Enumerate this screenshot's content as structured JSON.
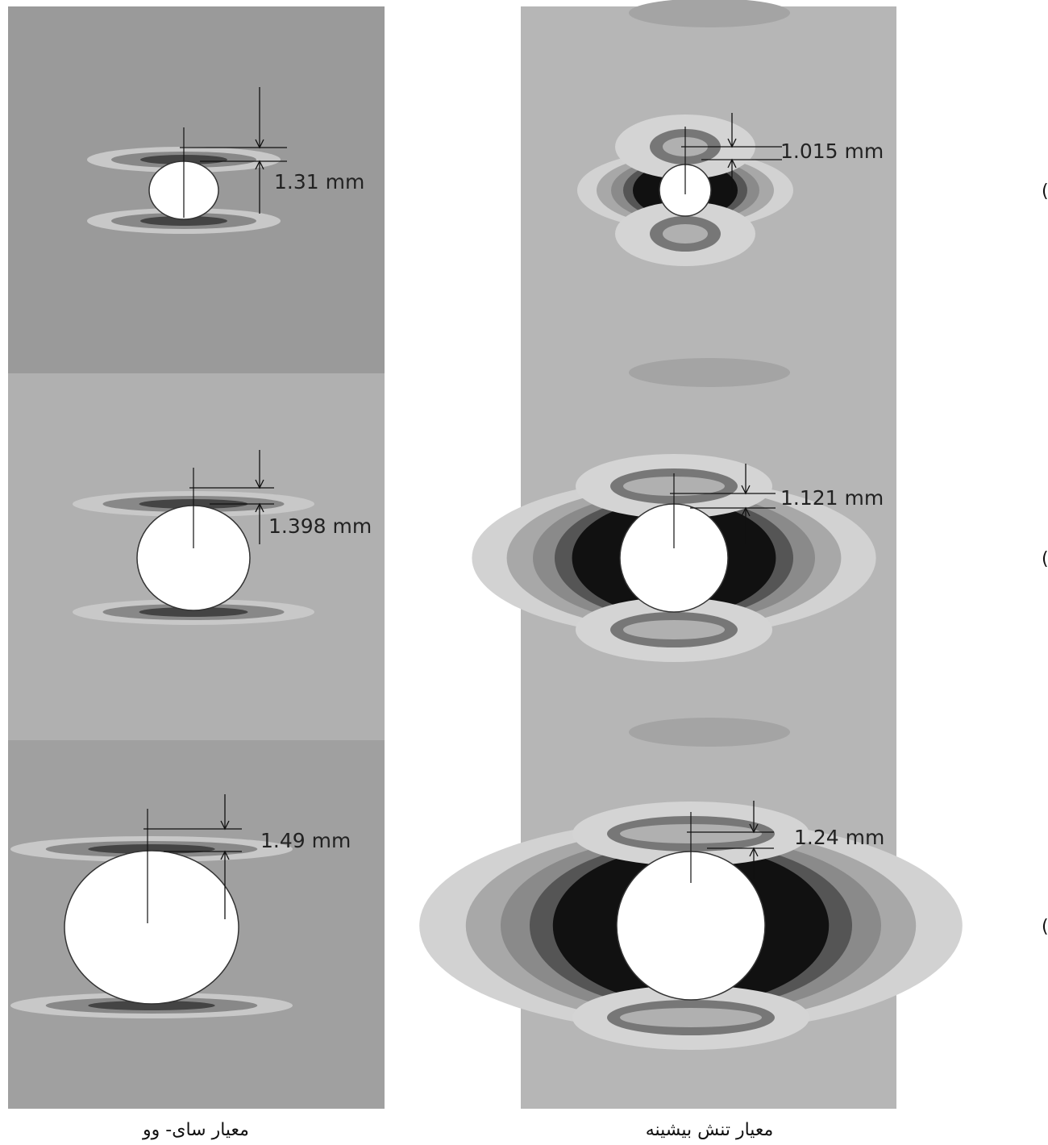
{
  "columns": [
    {
      "caption": "معیار سای- وو",
      "panels": [
        {
          "dimension": "1.31 mm"
        },
        {
          "dimension": "1.398 mm"
        },
        {
          "dimension": "1.49 mm"
        }
      ]
    },
    {
      "caption": "معیار تنش بیشینه",
      "panels": [
        {
          "dimension": "1.015 mm"
        },
        {
          "dimension": "1.121 mm"
        },
        {
          "dimension": "1.24 mm"
        }
      ]
    }
  ],
  "rows": [
    "(الف)",
    "(ب)",
    "(پ)"
  ]
}
